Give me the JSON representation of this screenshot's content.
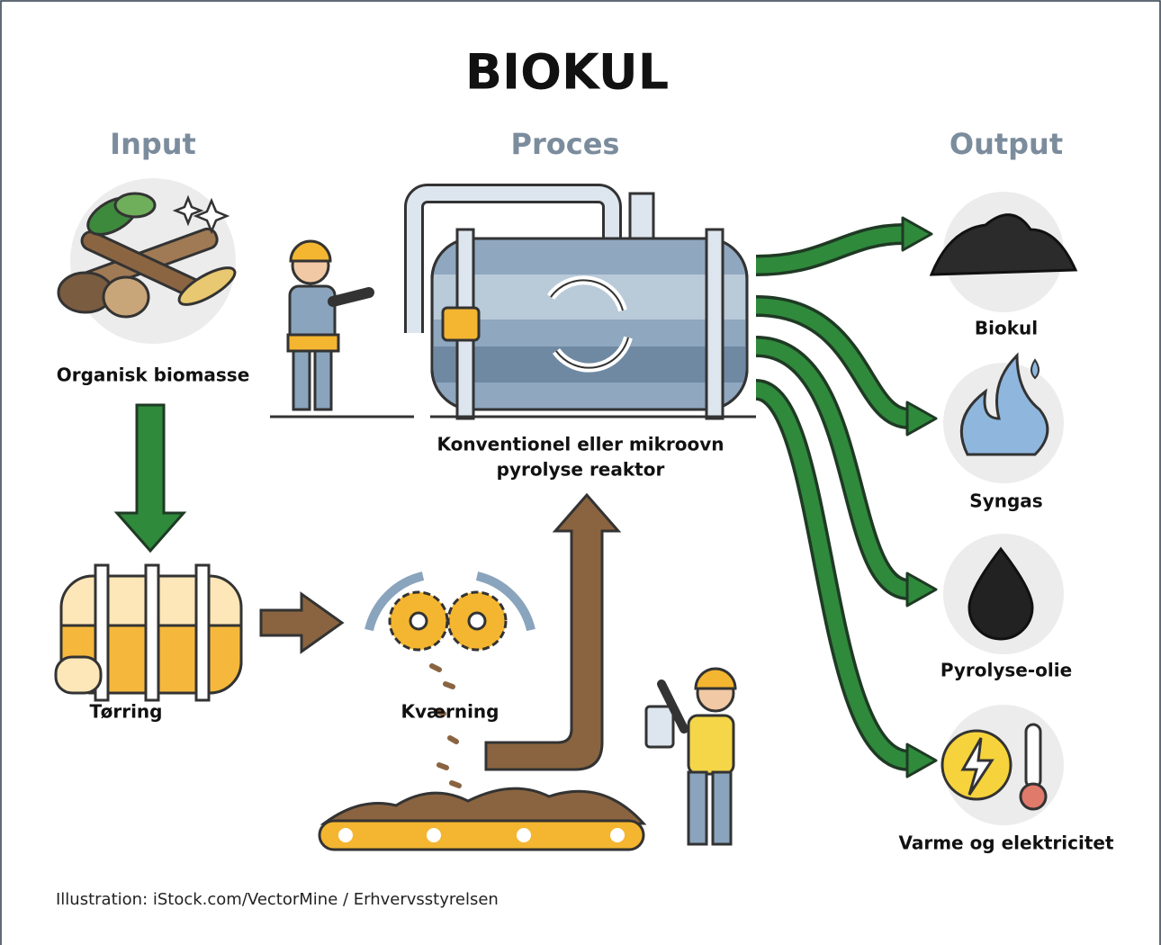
{
  "title": "BIOKUL",
  "columns": {
    "input": "Input",
    "process": "Proces",
    "output": "Output"
  },
  "input": {
    "label": "Organisk biomasse"
  },
  "steps": [
    {
      "label": "Tørring"
    },
    {
      "label": "Kværning"
    }
  ],
  "reactor": {
    "label_lines": [
      "Konventionel eller mikroovn",
      "pyrolyse reaktor"
    ]
  },
  "outputs": [
    {
      "label": "Biokul"
    },
    {
      "label": "Syngas"
    },
    {
      "label": "Pyrolyse-olie"
    },
    {
      "label": "Varme og elektricitet"
    }
  ],
  "credit": "Illustration: iStock.com/VectorMine / Erhvervsstyrelsen"
}
